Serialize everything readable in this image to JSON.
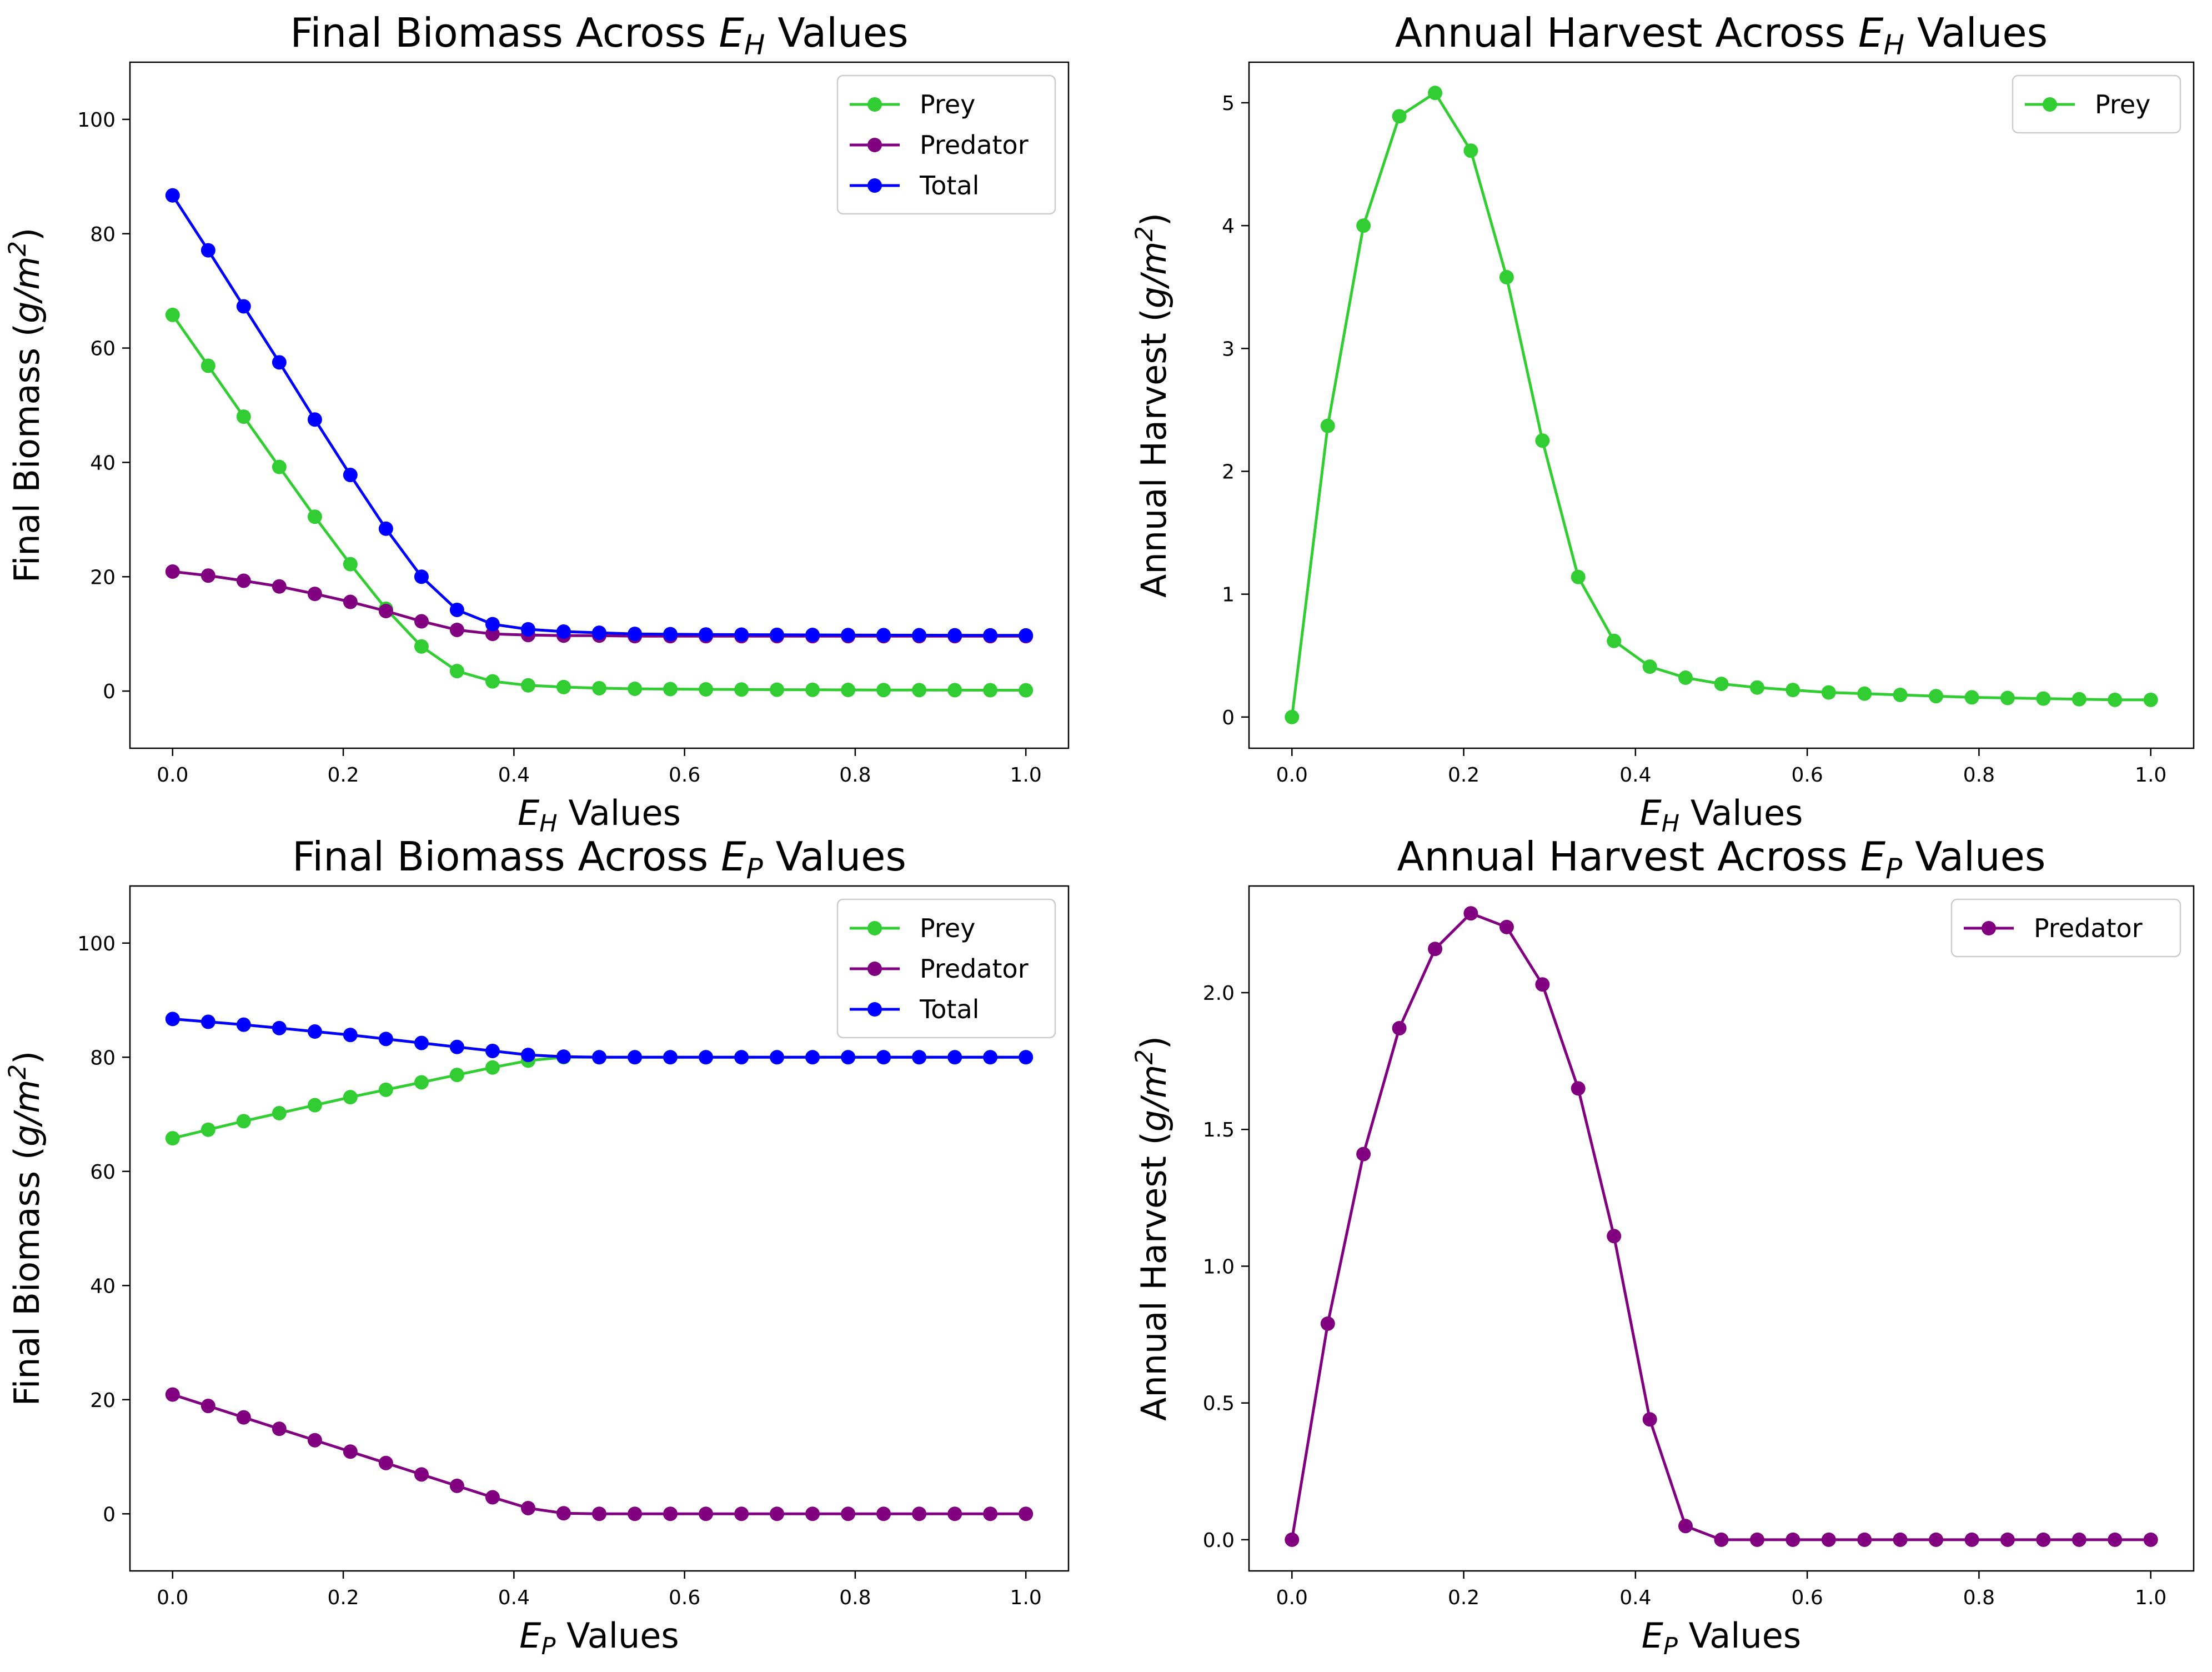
{
  "figure": {
    "background": "#ffffff"
  },
  "colors": {
    "prey": "#32cd32",
    "predator": "#800080",
    "total": "#0000ff"
  },
  "chart_data": [
    {
      "id": "biomass_eh",
      "type": "line",
      "title": {
        "pre": "Final Biomass Across ",
        "var": "E",
        "sub": "H",
        "post": " Values"
      },
      "xlabel": {
        "var": "E",
        "sub": "H",
        "post": " Values"
      },
      "ylabel": {
        "pre": "Final Biomass (",
        "var": "g/m",
        "sup": "2",
        "post": ")"
      },
      "xlim": [
        -0.05,
        1.05
      ],
      "ylim": [
        -10,
        110
      ],
      "xticks": [
        0.0,
        0.2,
        0.4,
        0.6,
        0.8,
        1.0
      ],
      "xtick_labels": [
        "0.0",
        "0.2",
        "0.4",
        "0.6",
        "0.8",
        "1.0"
      ],
      "yticks": [
        0,
        20,
        40,
        60,
        80,
        100
      ],
      "ytick_labels": [
        "0",
        "20",
        "40",
        "60",
        "80",
        "100"
      ],
      "legend": "top-right",
      "x": [
        0,
        0.0417,
        0.0833,
        0.125,
        0.1667,
        0.2083,
        0.25,
        0.2917,
        0.3333,
        0.375,
        0.4167,
        0.4583,
        0.5,
        0.5417,
        0.5833,
        0.625,
        0.6667,
        0.7083,
        0.75,
        0.7917,
        0.8333,
        0.875,
        0.9167,
        0.9583,
        1.0
      ],
      "series": [
        {
          "name": "Prey",
          "color": "#32cd32",
          "values": [
            65.8,
            56.9,
            48.0,
            39.2,
            30.5,
            22.2,
            14.4,
            7.8,
            3.5,
            1.7,
            1.0,
            0.7,
            0.5,
            0.4,
            0.35,
            0.3,
            0.27,
            0.24,
            0.22,
            0.2,
            0.18,
            0.17,
            0.16,
            0.15,
            0.14
          ]
        },
        {
          "name": "Predator",
          "color": "#800080",
          "values": [
            20.9,
            20.2,
            19.3,
            18.3,
            17.0,
            15.6,
            14.0,
            12.2,
            10.7,
            10.0,
            9.8,
            9.7,
            9.7,
            9.6,
            9.6,
            9.6,
            9.6,
            9.6,
            9.6,
            9.6,
            9.6,
            9.6,
            9.6,
            9.6,
            9.6
          ]
        },
        {
          "name": "Total",
          "color": "#0000ff",
          "values": [
            86.7,
            77.1,
            67.3,
            57.5,
            47.5,
            37.8,
            28.4,
            20.0,
            14.2,
            11.7,
            10.8,
            10.4,
            10.2,
            10.0,
            9.95,
            9.9,
            9.87,
            9.84,
            9.82,
            9.8,
            9.78,
            9.77,
            9.76,
            9.75,
            9.74
          ]
        }
      ]
    },
    {
      "id": "harvest_eh",
      "type": "line",
      "title": {
        "pre": "Annual Harvest Across ",
        "var": "E",
        "sub": "H",
        "post": " Values"
      },
      "xlabel": {
        "var": "E",
        "sub": "H",
        "post": " Values"
      },
      "ylabel": {
        "pre": "Annual Harvest (",
        "var": "g/m",
        "sup": "2",
        "post": ")"
      },
      "xlim": [
        -0.05,
        1.05
      ],
      "ylim": [
        -0.254,
        5.33
      ],
      "xticks": [
        0.0,
        0.2,
        0.4,
        0.6,
        0.8,
        1.0
      ],
      "xtick_labels": [
        "0.0",
        "0.2",
        "0.4",
        "0.6",
        "0.8",
        "1.0"
      ],
      "yticks": [
        0,
        1,
        2,
        3,
        4,
        5
      ],
      "ytick_labels": [
        "0",
        "1",
        "2",
        "3",
        "4",
        "5"
      ],
      "legend": "top-right",
      "x": [
        0,
        0.0417,
        0.0833,
        0.125,
        0.1667,
        0.2083,
        0.25,
        0.2917,
        0.3333,
        0.375,
        0.4167,
        0.4583,
        0.5,
        0.5417,
        0.5833,
        0.625,
        0.6667,
        0.7083,
        0.75,
        0.7917,
        0.8333,
        0.875,
        0.9167,
        0.9583,
        1.0
      ],
      "series": [
        {
          "name": "Prey",
          "color": "#32cd32",
          "values": [
            0.0,
            2.37,
            4.0,
            4.89,
            5.08,
            4.61,
            3.58,
            2.25,
            1.14,
            0.62,
            0.41,
            0.32,
            0.27,
            0.24,
            0.22,
            0.2,
            0.19,
            0.18,
            0.17,
            0.16,
            0.155,
            0.15,
            0.145,
            0.14,
            0.14
          ]
        }
      ]
    },
    {
      "id": "biomass_ep",
      "type": "line",
      "title": {
        "pre": "Final Biomass Across ",
        "var": "E",
        "sub": "P",
        "post": " Values"
      },
      "xlabel": {
        "var": "E",
        "sub": "P",
        "post": " Values"
      },
      "ylabel": {
        "pre": "Final Biomass (",
        "var": "g/m",
        "sup": "2",
        "post": ")"
      },
      "xlim": [
        -0.05,
        1.05
      ],
      "ylim": [
        -10,
        110
      ],
      "xticks": [
        0.0,
        0.2,
        0.4,
        0.6,
        0.8,
        1.0
      ],
      "xtick_labels": [
        "0.0",
        "0.2",
        "0.4",
        "0.6",
        "0.8",
        "1.0"
      ],
      "yticks": [
        0,
        20,
        40,
        60,
        80,
        100
      ],
      "ytick_labels": [
        "0",
        "20",
        "40",
        "60",
        "80",
        "100"
      ],
      "legend": "top-right",
      "x": [
        0,
        0.0417,
        0.0833,
        0.125,
        0.1667,
        0.2083,
        0.25,
        0.2917,
        0.3333,
        0.375,
        0.4167,
        0.4583,
        0.5,
        0.5417,
        0.5833,
        0.625,
        0.6667,
        0.7083,
        0.75,
        0.7917,
        0.8333,
        0.875,
        0.9167,
        0.9583,
        1.0
      ],
      "series": [
        {
          "name": "Prey",
          "color": "#32cd32",
          "values": [
            65.8,
            67.3,
            68.8,
            70.2,
            71.6,
            73.0,
            74.3,
            75.6,
            76.9,
            78.2,
            79.4,
            80.0,
            80.0,
            80.0,
            80.0,
            80.0,
            80.0,
            80.0,
            80.0,
            80.0,
            80.0,
            80.0,
            80.0,
            80.0,
            80.0
          ]
        },
        {
          "name": "Predator",
          "color": "#800080",
          "values": [
            20.9,
            18.9,
            16.9,
            14.9,
            12.9,
            10.9,
            8.9,
            6.9,
            4.9,
            2.9,
            1.0,
            0.1,
            0.0,
            0.0,
            0.0,
            0.0,
            0.0,
            0.0,
            0.0,
            0.0,
            0.0,
            0.0,
            0.0,
            0.0,
            0.0
          ]
        },
        {
          "name": "Total",
          "color": "#0000ff",
          "values": [
            86.7,
            86.2,
            85.7,
            85.1,
            84.5,
            83.9,
            83.2,
            82.5,
            81.8,
            81.1,
            80.4,
            80.1,
            80.0,
            80.0,
            80.0,
            80.0,
            80.0,
            80.0,
            80.0,
            80.0,
            80.0,
            80.0,
            80.0,
            80.0,
            80.0
          ]
        }
      ]
    },
    {
      "id": "harvest_ep",
      "type": "line",
      "title": {
        "pre": "Annual Harvest Across ",
        "var": "E",
        "sub": "P",
        "post": " Values"
      },
      "xlabel": {
        "var": "E",
        "sub": "P",
        "post": " Values"
      },
      "ylabel": {
        "pre": "Annual Harvest (",
        "var": "g/m",
        "sup": "2",
        "post": ")"
      },
      "xlim": [
        -0.05,
        1.05
      ],
      "ylim": [
        -0.114,
        2.39
      ],
      "xticks": [
        0.0,
        0.2,
        0.4,
        0.6,
        0.8,
        1.0
      ],
      "xtick_labels": [
        "0.0",
        "0.2",
        "0.4",
        "0.6",
        "0.8",
        "1.0"
      ],
      "yticks": [
        0.0,
        0.5,
        1.0,
        1.5,
        2.0
      ],
      "ytick_labels": [
        "0.0",
        "0.5",
        "1.0",
        "1.5",
        "2.0"
      ],
      "legend": "top-right",
      "x": [
        0,
        0.0417,
        0.0833,
        0.125,
        0.1667,
        0.2083,
        0.25,
        0.2917,
        0.3333,
        0.375,
        0.4167,
        0.4583,
        0.5,
        0.5417,
        0.5833,
        0.625,
        0.6667,
        0.7083,
        0.75,
        0.7917,
        0.8333,
        0.875,
        0.9167,
        0.9583,
        1.0
      ],
      "series": [
        {
          "name": "Predator",
          "color": "#800080",
          "values": [
            0.0,
            0.79,
            1.41,
            1.87,
            2.16,
            2.29,
            2.24,
            2.03,
            1.65,
            1.11,
            0.44,
            0.05,
            0.0,
            0.0,
            0.0,
            0.0,
            0.0,
            0.0,
            0.0,
            0.0,
            0.0,
            0.0,
            0.0,
            0.0,
            0.0
          ]
        }
      ]
    }
  ]
}
